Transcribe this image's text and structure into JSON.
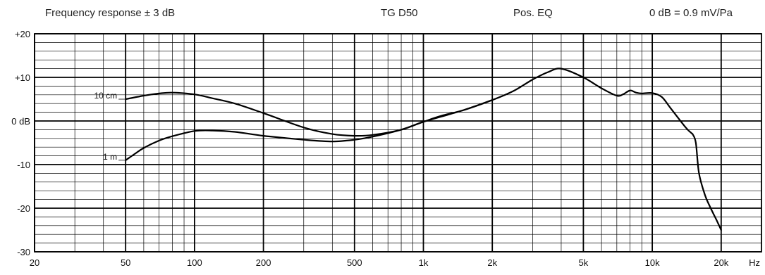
{
  "header": {
    "left": "Frequency response ± 3 dB",
    "model": "TG D50",
    "eq": "Pos. EQ",
    "sensitivity": "0 dB = 0.9 mV/Pa"
  },
  "chart_data": {
    "type": "line",
    "title": "Frequency response ± 3 dB",
    "xscale": "log",
    "xlim": [
      20,
      30000
    ],
    "ylim": [
      -30,
      20
    ],
    "grid": true,
    "x_ticks": [
      {
        "value": 20,
        "label": "20"
      },
      {
        "value": 50,
        "label": "50"
      },
      {
        "value": 100,
        "label": "100"
      },
      {
        "value": 200,
        "label": "200"
      },
      {
        "value": 500,
        "label": "500"
      },
      {
        "value": 1000,
        "label": "1k"
      },
      {
        "value": 2000,
        "label": "2k"
      },
      {
        "value": 5000,
        "label": "5k"
      },
      {
        "value": 10000,
        "label": "10k"
      },
      {
        "value": 20000,
        "label": "20k"
      }
    ],
    "x_unit": "Hz",
    "y_ticks": [
      {
        "value": 20,
        "label": "+20"
      },
      {
        "value": 10,
        "label": "+10"
      },
      {
        "value": 0,
        "label": "0 dB"
      },
      {
        "value": -10,
        "label": "-10"
      },
      {
        "value": -20,
        "label": "-20"
      },
      {
        "value": -30,
        "label": "-30"
      }
    ],
    "series": [
      {
        "name": "10 cm",
        "x": [
          50,
          60,
          70,
          80,
          100,
          120,
          150,
          200,
          300,
          400,
          500,
          600,
          800,
          1000,
          1500,
          2000,
          2500,
          3000,
          3500,
          4000,
          5000,
          6000,
          7000,
          7500,
          8000,
          8500,
          9000,
          10000,
          11000,
          12000,
          14000,
          15000
        ],
        "y": [
          5,
          5.8,
          6.3,
          6.5,
          6.1,
          5.2,
          4,
          1.8,
          -1.5,
          -3,
          -3.4,
          -3.2,
          -2,
          -0.2,
          2.5,
          4.8,
          7,
          9.5,
          11.2,
          12,
          10,
          7.5,
          5.8,
          6.2,
          7,
          6.5,
          6.3,
          6.4,
          5.5,
          3,
          -1.5,
          -3
        ]
      },
      {
        "name": "1 m",
        "x": [
          50,
          55,
          60,
          70,
          80,
          100,
          120,
          150,
          200,
          300,
          400,
          500,
          600,
          800,
          1000,
          1200,
          1500,
          2000
        ],
        "y": [
          -9,
          -7.5,
          -6.2,
          -4.5,
          -3.5,
          -2.3,
          -2.2,
          -2.5,
          -3.4,
          -4.3,
          -4.7,
          -4.3,
          -3.6,
          -2,
          -0.2,
          1.2,
          2.5,
          4.8
        ]
      },
      {
        "name": "",
        "x": [
          15000,
          15500,
          16000,
          17000,
          18000,
          19000,
          20000
        ],
        "y": [
          -3,
          -5,
          -12,
          -17,
          -20,
          -22.5,
          -25
        ]
      }
    ]
  }
}
